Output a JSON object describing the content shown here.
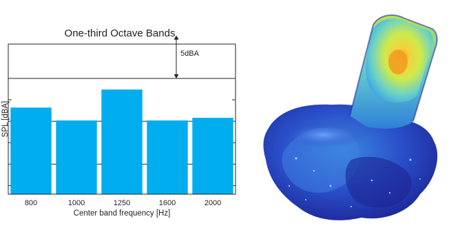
{
  "chart_data": {
    "type": "bar",
    "title": "One-third Octave Bands",
    "xlabel": "Center band frequency [Hz]",
    "ylabel": "SPL [dBA]",
    "categories": [
      "800",
      "1000",
      "1250",
      "1600",
      "2000"
    ],
    "values": [
      6.6,
      5.1,
      8.7,
      5.1,
      5.4
    ],
    "ylim": [
      -3.5,
      14
    ],
    "gridlines": [
      0,
      5,
      10
    ],
    "annotation": {
      "label": "5dBA",
      "span": 5
    },
    "bar_color": "#00adef",
    "grid": true,
    "ytick_labels": false
  },
  "figure": {
    "image": "fem-pressure-field-3d-mesh",
    "colormap": [
      "#1a1f9e",
      "#2f5fd6",
      "#4fb6e8",
      "#d8ec4a",
      "#f5a623"
    ]
  }
}
